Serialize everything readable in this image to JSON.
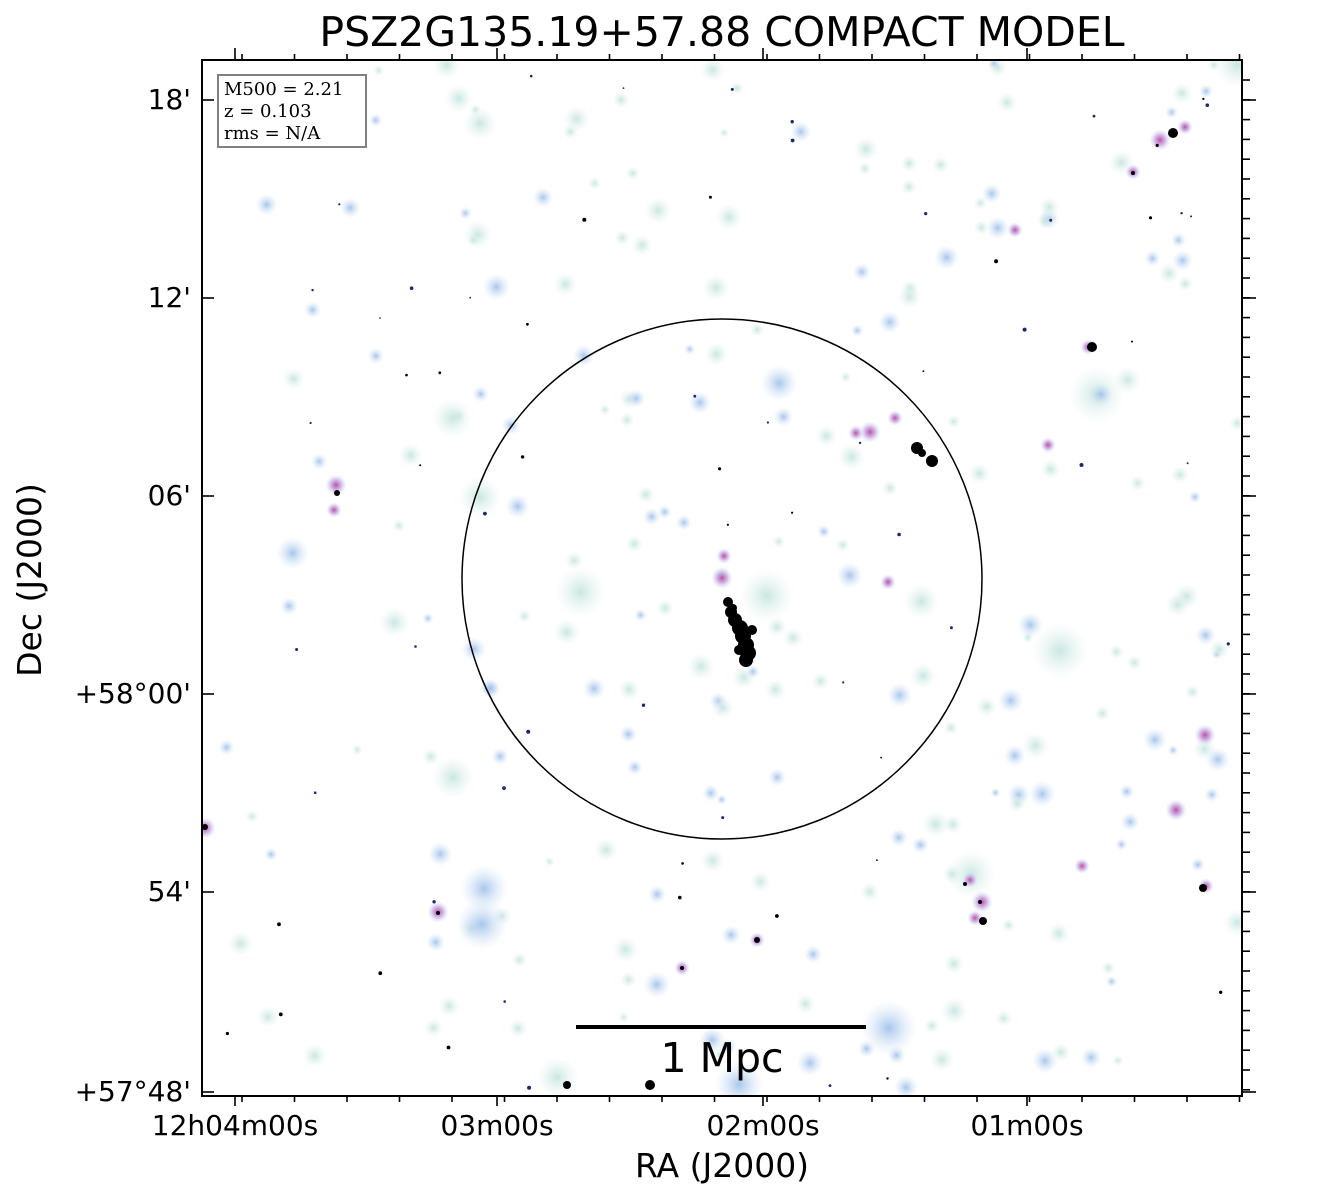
{
  "title": "PSZ2G135.19+57.88 COMPACT MODEL",
  "axes": {
    "xlabel": "RA (J2000)",
    "ylabel": "Dec (J2000)",
    "x_ticks": [
      "12h04m00s",
      "03m00s",
      "02m00s",
      "01m00s"
    ],
    "y_ticks": [
      "18'",
      "12'",
      "06'",
      "+58°00'",
      "54'",
      "+57°48'"
    ]
  },
  "info": {
    "mass": "M500 = 2.21",
    "redshift": "z = 0.103",
    "rms": "rms = N/A"
  },
  "scalebar": {
    "label": "1 Mpc"
  },
  "colors": {
    "faint_source": "#cfeae4",
    "blue_source": "#a8c6ec",
    "bright_source": "#c88ac8",
    "core": "#000000"
  }
}
